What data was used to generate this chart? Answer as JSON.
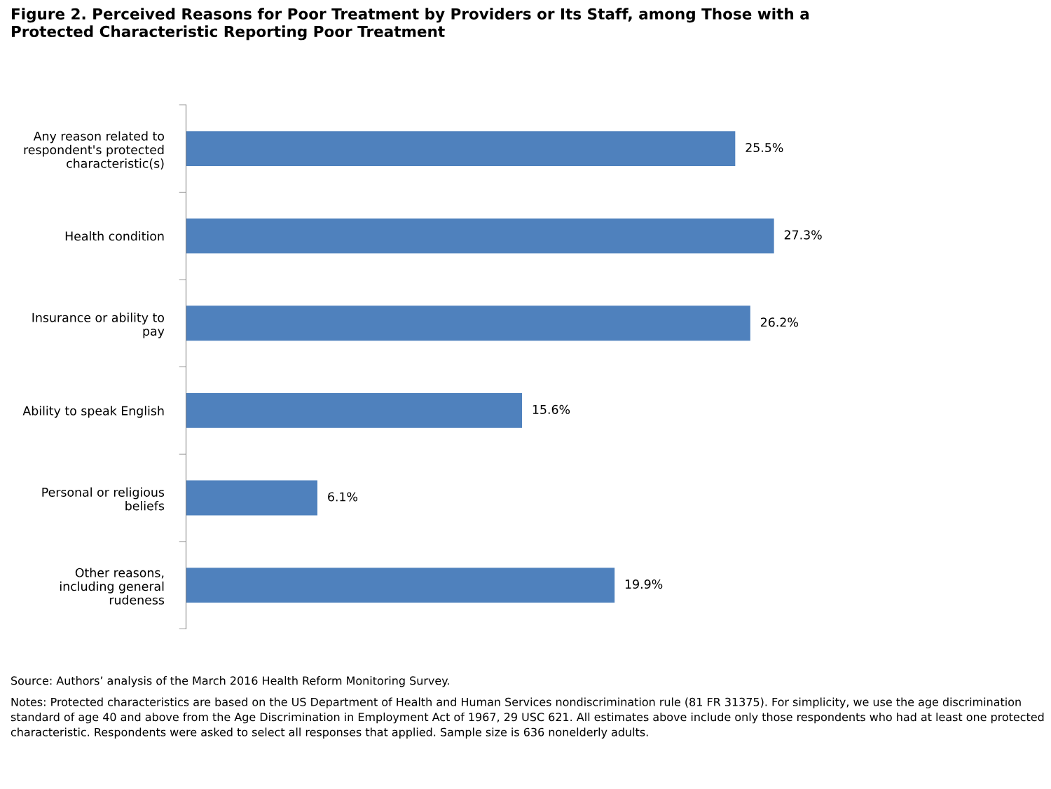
{
  "chart_data": {
    "type": "bar",
    "orientation": "horizontal",
    "title": "Figure 2. Perceived Reasons for Poor Treatment by Providers or Its Staff, among Those with a\nProtected Characteristic Reporting Poor Treatment",
    "categories": [
      "Any reason related to\nrespondent's protected\ncharacteristic(s)",
      "Health condition",
      "Insurance or ability to\npay",
      "Ability to speak English",
      "Personal or religious\nbeliefs",
      "Other reasons,\nincluding general\nrudeness"
    ],
    "values": [
      25.5,
      27.3,
      26.2,
      15.6,
      6.1,
      19.9
    ],
    "value_labels": [
      "25.5%",
      "27.3%",
      "26.2%",
      "15.6%",
      "6.1%",
      "19.9%"
    ],
    "color": "#4f81bd",
    "grid": false,
    "legend": false,
    "annotations": [
      "Source: Authors’ analysis of the March 2016 Health Reform Monitoring Survey.",
      "Notes: Protected characteristics are based on the US Department of Health and Human Services nondiscrimination rule (81 FR 31375). For simplicity, we use the age discrimination standard of age 40 and above from the Age Discrimination in Employment Act of 1967, 29 USC 621. All estimates above include only those respondents who had at least one protected characteristic. Respondents were asked to select all responses that applied. Sample size is 636 nonelderly adults."
    ]
  }
}
